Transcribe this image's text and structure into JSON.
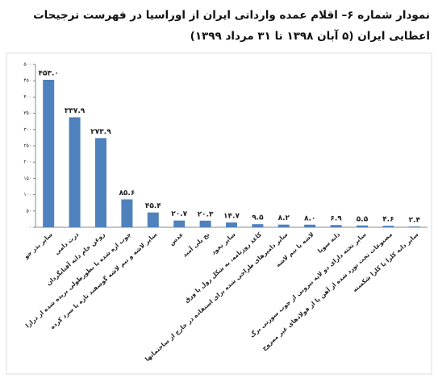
{
  "chart_data": {
    "type": "bar",
    "title": "نمودار شماره ۶– اقلام عمده وارداتی ایران از اوراسیا در فهرست ترجیحات اعطایی ایران (۵ آبان ۱۳۹۸ تا ۳۱ مرداد ۱۳۹۹)",
    "categories": [
      "سایر بذر جو",
      "ذرت دامی",
      "روغن خام دانه آفتابگردان",
      "چوب اره شده یا بطورطولی بریده شده از درازا",
      "سایر لاشه و نیم لاشه گوسفند تازه یا سرد کرده",
      "عدس",
      "نخ پلی آمید",
      "سایر نخود",
      "کاغذ روزنامه، به شکل رول یا ورق",
      "سایر دامپرهای طراحی شده برای استفاده در خارج از ساختمانها",
      "لاشه یا نیم لاشه",
      "دانه سویا",
      "سایر تخته دارای دو لایه بیرونی از چوب سوزنی برگ",
      "مصنوعات تخت نورد شده از آهن یا از فولادهای غیر ممزوج",
      "سایر دانه کلزا یا کلزا شکسته"
    ],
    "values": [
      453.0,
      337.9,
      273.9,
      85.6,
      45.4,
      20.7,
      20.3,
      14.7,
      9.5,
      8.2,
      8.0,
      6.9,
      5.5,
      4.6,
      2.4
    ],
    "value_labels": [
      "۴۵۳.۰",
      "۳۳۷.۹",
      "۲۷۳.۹",
      "۸۵.۶",
      "۴۵.۴",
      "۲۰.۷",
      "۲۰.۳",
      "۱۴.۷",
      "۹.۵",
      "۸.۲",
      "۸.۰",
      "۶.۹",
      "۵.۵",
      "۴.۶",
      "۲.۴"
    ],
    "color": "#4f81bd",
    "ylim": [
      0,
      500
    ],
    "yticks": [
      {
        "value": 0,
        "label": "۰"
      },
      {
        "value": 50,
        "label": "۵۰"
      },
      {
        "value": 100,
        "label": "۱۰۰"
      },
      {
        "value": 150,
        "label": "۱۵۰"
      },
      {
        "value": 200,
        "label": "۲۰۰"
      },
      {
        "value": 250,
        "label": "۲۵۰"
      },
      {
        "value": 300,
        "label": "۳۰۰"
      },
      {
        "value": 350,
        "label": "۳۵۰"
      },
      {
        "value": 400,
        "label": "۴۰۰"
      },
      {
        "value": 450,
        "label": "۴۵۰"
      },
      {
        "value": 500,
        "label": "۵۰۰"
      }
    ],
    "grid": false
  }
}
